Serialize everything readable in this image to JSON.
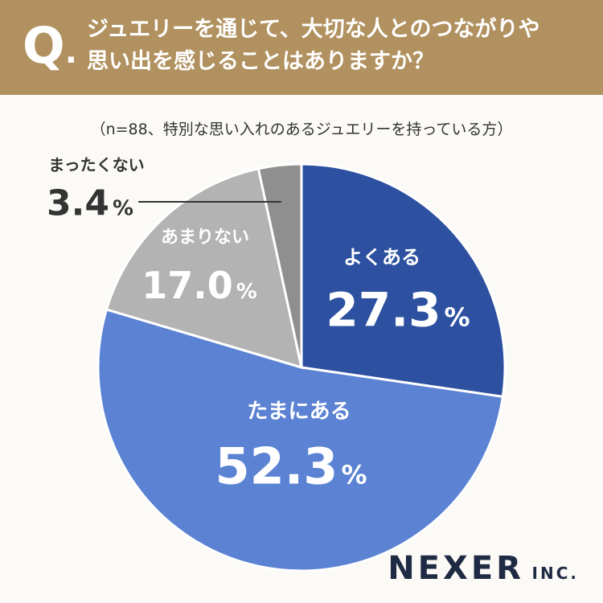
{
  "question": {
    "mark": "Q",
    "dot": ".",
    "line1": "ジュエリーを通じて、大切な人とのつながりや",
    "line2": "思い出を感じることはありますか？"
  },
  "subtitle": "（n=88、特別な思い入れのあるジュエリーを持っている方）",
  "chart_data": {
    "type": "pie",
    "title": "ジュエリーを通じて、大切な人とのつながりや思い出を感じることはありますか？",
    "unit": "%",
    "categories": [
      "よくある",
      "たまにある",
      "あまりない",
      "まったくない"
    ],
    "values": [
      27.3,
      52.3,
      17.0,
      3.4
    ],
    "value_labels": [
      "27.3",
      "52.3",
      "17.0",
      "3.4"
    ],
    "start": "12 o'clock",
    "direction": "clockwise",
    "colors": [
      "#2d51a0",
      "#5b82d3",
      "#b3b3b3",
      "#8f8f8f"
    ]
  },
  "logo": {
    "main": "NEXER",
    "suffix": "INC."
  }
}
